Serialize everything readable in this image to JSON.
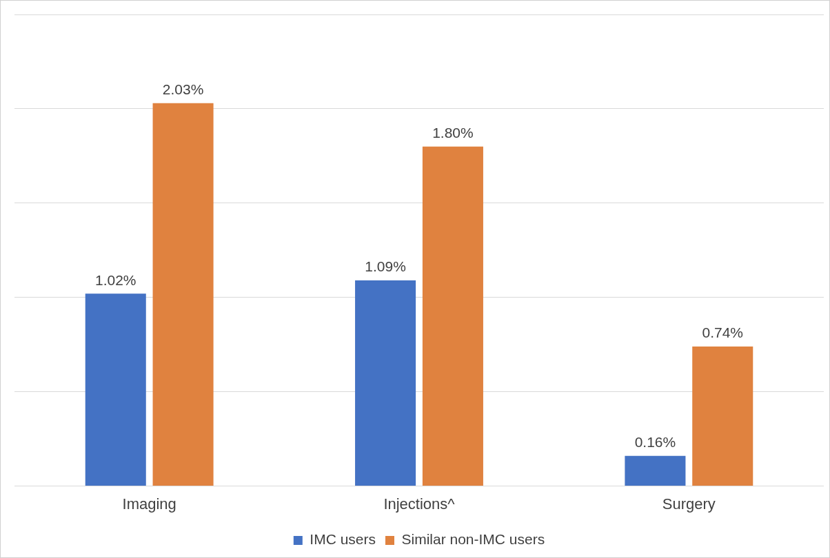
{
  "chart_data": {
    "type": "bar",
    "categories": [
      "Imaging",
      "Injections^",
      "Surgery"
    ],
    "series": [
      {
        "name": "IMC users",
        "color": "#4472c4",
        "values": [
          1.02,
          1.09,
          0.16
        ],
        "value_labels": [
          "1.02%",
          "1.09%",
          "0.16%"
        ]
      },
      {
        "name": "Similar non-IMC users",
        "color": "#e0823f",
        "values": [
          2.03,
          1.8,
          0.74
        ],
        "value_labels": [
          "2.03%",
          "1.80%",
          "0.74%"
        ]
      }
    ],
    "ylim": [
      0,
      2.5
    ],
    "yticks": [
      {
        "value": 0,
        "label": null
      },
      {
        "value": 0.5,
        "label": null
      },
      {
        "value": 1,
        "label": null
      },
      {
        "value": 1.5,
        "label": null
      },
      {
        "value": 2,
        "label": null
      },
      {
        "value": 2.5,
        "label": null
      }
    ],
    "grid": "y",
    "legend": "bottom",
    "tick_labels": "x"
  }
}
